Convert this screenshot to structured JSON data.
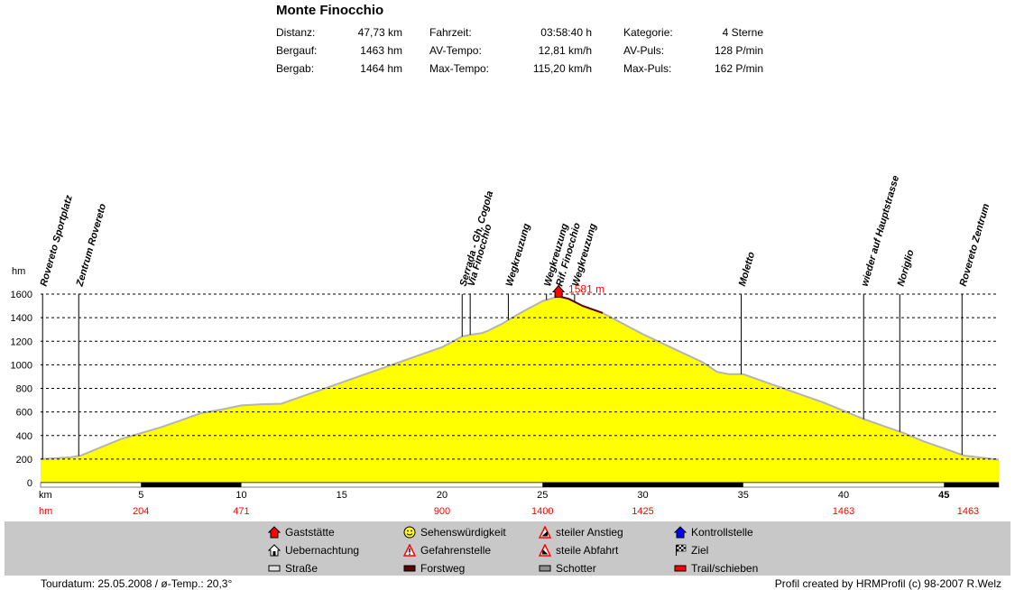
{
  "header": {
    "title": "Monte Finocchio",
    "stats": [
      {
        "label": "Distanz:",
        "value": "47,73 km"
      },
      {
        "label": "Bergauf:",
        "value": "1463 hm"
      },
      {
        "label": "Bergab:",
        "value": "1464 hm"
      },
      {
        "label": "Fahrzeit:",
        "value": "03:58:40 h"
      },
      {
        "label": "AV-Tempo:",
        "value": "12,81 km/h"
      },
      {
        "label": "Max-Tempo:",
        "value": "115,20 km/h"
      },
      {
        "label": "Kategorie:",
        "value": "4 Sterne"
      },
      {
        "label": "AV-Puls:",
        "value": "128 P/min"
      },
      {
        "label": "Max-Puls:",
        "value": "162 P/min"
      }
    ]
  },
  "chart_data": {
    "type": "area",
    "title": "Monte Finocchio",
    "ylabel": "hm",
    "xlabel": "km",
    "xlim": [
      0,
      47.73
    ],
    "ylim": [
      0,
      1600
    ],
    "y_ticks": [
      0,
      200,
      400,
      600,
      800,
      1000,
      1200,
      1400,
      1600
    ],
    "x_ticks": [
      5,
      10,
      15,
      20,
      25,
      30,
      35,
      40,
      45
    ],
    "grid": true,
    "fill_color": "#ffff00",
    "line_color": "#b4b4b4",
    "forest_color": "#600000",
    "forest_range": [
      25.8,
      28.2
    ],
    "profile": [
      [
        0,
        200
      ],
      [
        1.5,
        215
      ],
      [
        2.0,
        230
      ],
      [
        3.0,
        300
      ],
      [
        4.0,
        370
      ],
      [
        5.0,
        420
      ],
      [
        6.0,
        470
      ],
      [
        7.0,
        530
      ],
      [
        8.0,
        590
      ],
      [
        9.0,
        620
      ],
      [
        10.0,
        655
      ],
      [
        11.0,
        665
      ],
      [
        12.0,
        670
      ],
      [
        13.0,
        730
      ],
      [
        14.0,
        790
      ],
      [
        15.0,
        850
      ],
      [
        16.0,
        910
      ],
      [
        17.0,
        970
      ],
      [
        18.0,
        1030
      ],
      [
        19.0,
        1090
      ],
      [
        20.0,
        1150
      ],
      [
        21.0,
        1240
      ],
      [
        21.4,
        1255
      ],
      [
        22.0,
        1270
      ],
      [
        22.3,
        1290
      ],
      [
        23.0,
        1350
      ],
      [
        23.3,
        1380
      ],
      [
        24.0,
        1450
      ],
      [
        25.0,
        1540
      ],
      [
        25.8,
        1581
      ],
      [
        26.3,
        1560
      ],
      [
        27.0,
        1500
      ],
      [
        28.0,
        1440
      ],
      [
        29.0,
        1350
      ],
      [
        30.0,
        1260
      ],
      [
        31.0,
        1180
      ],
      [
        32.0,
        1100
      ],
      [
        33.0,
        1020
      ],
      [
        33.7,
        940
      ],
      [
        34.3,
        920
      ],
      [
        35.0,
        920
      ],
      [
        36.0,
        860
      ],
      [
        37.0,
        800
      ],
      [
        38.0,
        740
      ],
      [
        39.0,
        680
      ],
      [
        40.0,
        610
      ],
      [
        41.0,
        540
      ],
      [
        42.0,
        480
      ],
      [
        43.0,
        420
      ],
      [
        44.0,
        350
      ],
      [
        45.0,
        290
      ],
      [
        46.0,
        230
      ],
      [
        47.0,
        210
      ],
      [
        47.73,
        195
      ]
    ],
    "waypoints": [
      {
        "name": "Rovereto Sportplatz",
        "km": 0.1
      },
      {
        "name": "Zentrum Rovereto",
        "km": 1.9
      },
      {
        "name": "Serrada - Gh. Cogola",
        "km": 21.0
      },
      {
        "name": "Via Finocchio",
        "km": 21.4
      },
      {
        "name": "Wegkreuzung",
        "km": 23.3
      },
      {
        "name": "Wegkreuzung",
        "km": 25.2
      },
      {
        "name": "Rif. Finocchio",
        "km": 25.8
      },
      {
        "name": "Wegkreuzung",
        "km": 26.6
      },
      {
        "name": "Moletto",
        "km": 34.9
      },
      {
        "name": "wieder auf Hauptstrasse",
        "km": 41.0
      },
      {
        "name": "Noriglio",
        "km": 42.8
      },
      {
        "name": "Rovereto Zentrum",
        "km": 45.9
      }
    ],
    "summit": {
      "km": 25.8,
      "label": "1581 m",
      "color": "#ff0000"
    },
    "hm_row": [
      {
        "km": 0,
        "label": "hm"
      },
      {
        "km": 5,
        "label": "204"
      },
      {
        "km": 10,
        "label": "471"
      },
      {
        "km": 20,
        "label": "900"
      },
      {
        "km": 25,
        "label": "1400"
      },
      {
        "km": 30,
        "label": "1425"
      },
      {
        "km": 40,
        "label": "1463"
      },
      {
        "km": 46.2,
        "label": "1463"
      }
    ],
    "axis_label_km": "km",
    "axis_label_hm": "hm",
    "axis_bar_segments": [
      [
        5,
        10
      ],
      [
        25,
        35
      ],
      [
        45,
        47.73
      ]
    ]
  },
  "legend": {
    "items": [
      {
        "label": "Gaststätte",
        "icon": "house-red-icon",
        "color": "#ff0000"
      },
      {
        "label": "Uebernachtung",
        "icon": "house-outline-icon",
        "color": "#ffffff"
      },
      {
        "label": "Straße",
        "icon": "road-swatch-icon",
        "color": "#e0e0e0"
      },
      {
        "label": "Sehenswürdigkeit",
        "icon": "smiley-icon",
        "color": "#ffff00"
      },
      {
        "label": "Gefahrenstelle",
        "icon": "warning-icon",
        "color": "#ff0000"
      },
      {
        "label": "Forstweg",
        "icon": "forest-swatch-icon",
        "color": "#600000"
      },
      {
        "label": "steiler Anstieg",
        "icon": "steep-up-icon",
        "color": "#ff0000"
      },
      {
        "label": "steile Abfahrt",
        "icon": "steep-down-icon",
        "color": "#ff0000"
      },
      {
        "label": "Schotter",
        "icon": "gravel-swatch-icon",
        "color": "#909090"
      },
      {
        "label": "Kontrollstelle",
        "icon": "house-blue-icon",
        "color": "#0000ff"
      },
      {
        "label": "Ziel",
        "icon": "checkered-flag-icon",
        "color": "#000000"
      },
      {
        "label": "Trail/schieben",
        "icon": "trail-swatch-icon",
        "color": "#ff0000"
      }
    ]
  },
  "footer": {
    "left": "Tourdatum: 25.05.2008  /  ø-Temp.: 20,3°",
    "right": "Profil created by HRMProfil (c) 98-2007 R.Welz"
  }
}
